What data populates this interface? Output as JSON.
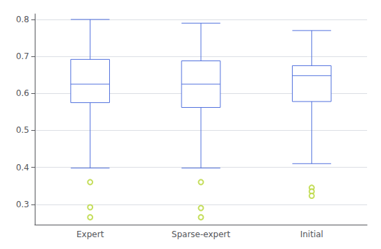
{
  "chart_data": {
    "type": "box",
    "categories": [
      "Expert",
      "Sparse-expert",
      "Initial"
    ],
    "values": [
      {
        "whisker_low": 0.398,
        "q1": 0.575,
        "median": 0.625,
        "q3": 0.692,
        "whisker_high": 0.8,
        "outliers": [
          0.36,
          0.292,
          0.265
        ]
      },
      {
        "whisker_low": 0.398,
        "q1": 0.562,
        "median": 0.625,
        "q3": 0.688,
        "whisker_high": 0.79,
        "outliers": [
          0.36,
          0.29,
          0.265
        ]
      },
      {
        "whisker_low": 0.41,
        "q1": 0.578,
        "median": 0.648,
        "q3": 0.675,
        "whisker_high": 0.77,
        "outliers": [
          0.345,
          0.335,
          0.323
        ]
      }
    ],
    "ylim": [
      0.245,
      0.815
    ],
    "yticks": [
      0.3,
      0.4,
      0.5,
      0.6,
      0.7,
      0.8
    ],
    "grid": true
  }
}
